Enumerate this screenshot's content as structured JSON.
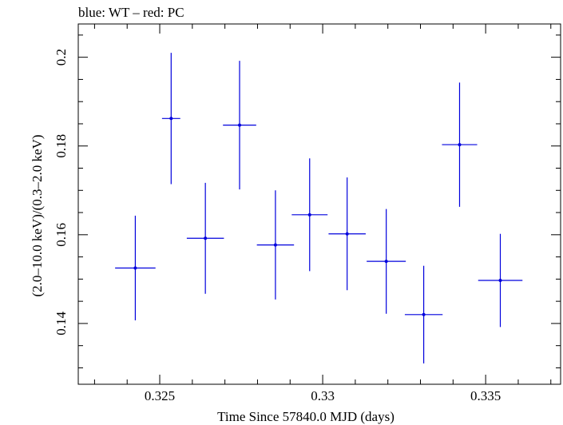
{
  "chart_data": {
    "type": "scatter",
    "title": "blue: WT – red: PC",
    "xlabel": "Time Since 57840.0 MJD (days)",
    "ylabel": "(2.0–10.0 keV)/(0.3–2.0 keV)",
    "xlim": [
      0.3225,
      0.3373
    ],
    "ylim": [
      0.1263,
      0.2075
    ],
    "x_ticks": [
      0.325,
      0.33,
      0.335
    ],
    "x_tick_labels": [
      "0.325",
      "0.33",
      "0.335"
    ],
    "y_ticks": [
      0.14,
      0.16,
      0.18,
      0.2
    ],
    "y_tick_labels": [
      "0.14",
      "0.16",
      "0.18",
      "0.2"
    ],
    "grid": false,
    "series": [
      {
        "color": "#0000dd",
        "points": [
          {
            "x": 0.32425,
            "xerr": 0.00062,
            "y": 0.1525,
            "yerr": 0.0118
          },
          {
            "x": 0.32535,
            "xerr": 0.00028,
            "y": 0.1862,
            "yerr": 0.0148
          },
          {
            "x": 0.3264,
            "xerr": 0.00057,
            "y": 0.1592,
            "yerr": 0.0125
          },
          {
            "x": 0.32745,
            "xerr": 0.00051,
            "y": 0.1847,
            "yerr": 0.0145
          },
          {
            "x": 0.32855,
            "xerr": 0.00057,
            "y": 0.1577,
            "yerr": 0.0123
          },
          {
            "x": 0.3296,
            "xerr": 0.00055,
            "y": 0.1645,
            "yerr": 0.0127
          },
          {
            "x": 0.33075,
            "xerr": 0.00057,
            "y": 0.1602,
            "yerr": 0.0127
          },
          {
            "x": 0.33195,
            "xerr": 0.0006,
            "y": 0.154,
            "yerr": 0.0118
          },
          {
            "x": 0.3331,
            "xerr": 0.00058,
            "y": 0.142,
            "yerr": 0.011
          },
          {
            "x": 0.3342,
            "xerr": 0.00054,
            "y": 0.1803,
            "yerr": 0.014
          },
          {
            "x": 0.33545,
            "xerr": 0.00068,
            "y": 0.1497,
            "yerr": 0.0105
          }
        ]
      }
    ]
  }
}
